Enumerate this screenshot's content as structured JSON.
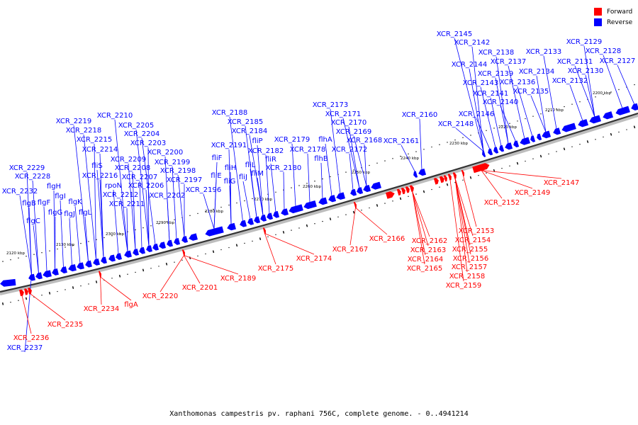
{
  "legend": {
    "forward_label": "Forward",
    "reverse_label": "Reverse",
    "forward_color": "#ff0000",
    "reverse_color": "#0000ff"
  },
  "colors": {
    "axis": "#333333",
    "axis_shade": "#bdbdbd",
    "tick": "#000000"
  },
  "caption": "Xanthomonas campestris pv. raphani 756C, complete genome. - 0..4941214",
  "scale_labels": [
    "2120 kbp",
    "2130 kbp",
    "2140 kbp",
    "2150 kbp",
    "2160 kbp",
    "2170 kbp",
    "2180 kbp",
    "2190 kbp",
    "2200 kbp",
    "2210 kbp",
    "2220 kbp",
    "2230 kbp",
    "2240 kbp",
    "2250 kbp",
    "2260 kbp",
    "2270 kbp",
    "2280 kbp",
    "2290 kbp",
    "2300 kbp",
    "2310 kbp"
  ],
  "reverse_genes": [
    "XCR_2237",
    "XCR_2232",
    "XCR_2229",
    "XCR_2228",
    "flgB",
    "flgC",
    "flgF",
    "flgG",
    "flgH",
    "flgI",
    "flgJ",
    "flgK",
    "flgL",
    "XCR_2219",
    "XCR_2218",
    "XCR_2215",
    "XCR_2214",
    "fliS",
    "XCR_2216",
    "rpoN",
    "XCR_2212",
    "XCR_2211",
    "XCR_2210",
    "XCR_2209",
    "XCR_2208",
    "XCR_2207",
    "XCR_2206",
    "XCR_2205",
    "XCR_2204",
    "XCR_2203",
    "XCR_2202",
    "XCR_2200",
    "XCR_2199",
    "XCR_2198",
    "XCR_2197",
    "XCR_2196",
    "XCR_2188",
    "XCR_2185",
    "XCR_2184",
    "XCR_2191",
    "fliF",
    "fliH",
    "fliE",
    "fliG",
    "fliJ",
    "fliP",
    "fliL",
    "fliM",
    "XCR_2182",
    "fliR",
    "XCR_2180",
    "XCR_2179",
    "XCR_2178",
    "XCR_2173",
    "XCR_2171",
    "XCR_2170",
    "XCR_2169",
    "XCR_2168",
    "flhA",
    "flhB",
    "XCR_2172",
    "XCR_2161",
    "XCR_2160",
    "XCR_2148",
    "XCR_2146",
    "XCR_2145",
    "XCR_2142",
    "XCR_2144",
    "XCR_2143",
    "XCR_2141",
    "XCR_2140",
    "XCR_2138",
    "XCR_2137",
    "XCR_2139",
    "XCR_2136",
    "XCR_2135",
    "XCR_2134",
    "XCR_2133",
    "XCR_2132",
    "XCR_2131",
    "XCR_2130",
    "XCR_2129",
    "XCR_2128",
    "XCR_2127"
  ],
  "forward_genes": [
    "XCR_2236",
    "XCR_2235",
    "XCR_2234",
    "flgA",
    "XCR_2220",
    "XCR_2201",
    "XCR_2189",
    "XCR_2175",
    "XCR_2174",
    "XCR_2167",
    "XCR_2166",
    "XCR_2162",
    "XCR_2163",
    "XCR_2164",
    "XCR_2165",
    "XCR_2153",
    "XCR_2154",
    "XCR_2155",
    "XCR_2156",
    "XCR_2157",
    "XCR_2158",
    "XCR_2159",
    "XCR_2152",
    "XCR_2149",
    "XCR_2147"
  ]
}
